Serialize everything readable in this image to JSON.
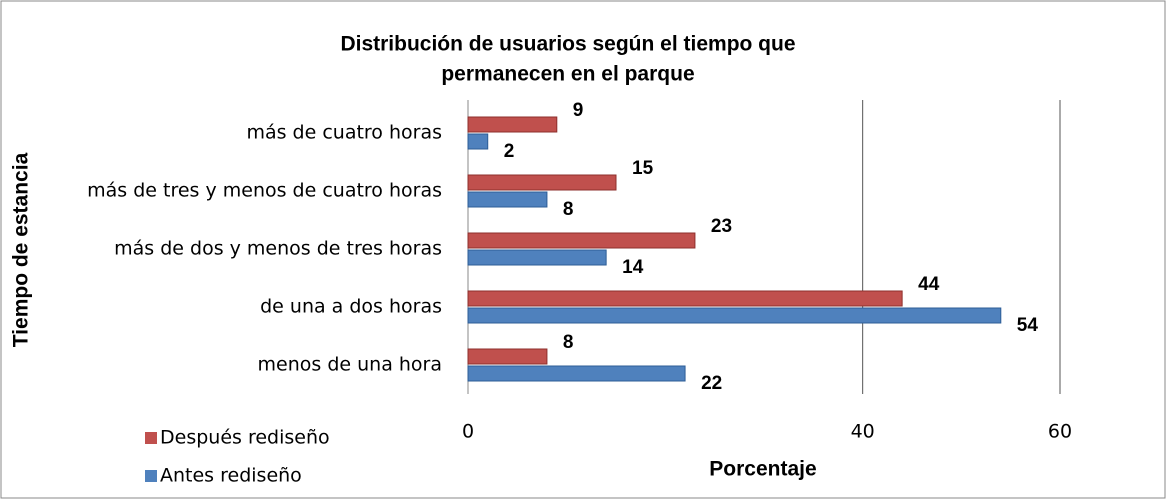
{
  "chart_data": {
    "type": "bar",
    "orientation": "horizontal",
    "title": [
      "Distribución de usuarios según el tiempo que",
      "permanecen en el parque"
    ],
    "x_label": "Porcentaje",
    "y_label": "Tiempo de estancia",
    "categories": [
      "más de cuatro horas",
      "más de tres y menos de cuatro horas",
      "más de dos y menos de tres horas",
      "de una a dos horas",
      "menos de una hora"
    ],
    "series": [
      {
        "name": "Después rediseño",
        "color": "#c0504d",
        "values": [
          9,
          15,
          23,
          44,
          8
        ]
      },
      {
        "name": "Antes rediseño",
        "color": "#4f81bd",
        "values": [
          2,
          8,
          14,
          54,
          22
        ]
      }
    ],
    "xlim": [
      0,
      60
    ],
    "xticks": [
      0,
      40,
      60
    ],
    "grid": true,
    "legend": "bottom-left"
  }
}
